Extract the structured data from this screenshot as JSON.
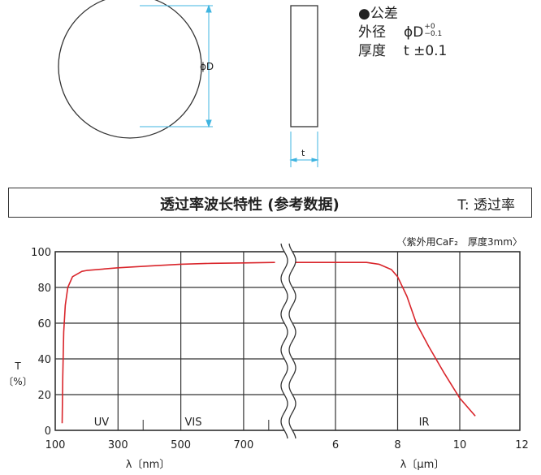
{
  "drawing": {
    "diameter_label": "ϕD",
    "thickness_label": "t",
    "dimension_color": "#3fb4e0"
  },
  "tolerance": {
    "heading": "●公差",
    "diameter_label": "外径",
    "diameter_value": "ϕD",
    "diameter_tol_plus": "+0",
    "diameter_tol_minus": "−0.1",
    "thickness_label": "厚度",
    "thickness_value": "t ±0.1"
  },
  "header": {
    "title": "透过率波长特性 (参考数据)",
    "legend": "T: 透过率"
  },
  "chart_data": {
    "type": "line",
    "note": "〈紫外用CaF₂　厚度3mm〉",
    "ylabel": "T\n〔%〕",
    "ylabel_top": "T",
    "ylabel_bottom": "〔%〕",
    "ylim": [
      0,
      100
    ],
    "yticks": [
      "0",
      "20",
      "40",
      "60",
      "80",
      "100"
    ],
    "x_left": {
      "label": "λ〔nm〕",
      "ticks": [
        "100",
        "300",
        "500",
        "700"
      ],
      "range": [
        100,
        800
      ]
    },
    "x_right": {
      "label": "λ〔μm〕",
      "ticks": [
        "6",
        "8",
        "10",
        "12"
      ],
      "range": [
        4.6,
        12
      ]
    },
    "regions": [
      "UV",
      "VIS",
      "IR"
    ],
    "grid": true,
    "line_color": "#d9252b",
    "series_nm": {
      "x": [
        122,
        124,
        127,
        132,
        140,
        155,
        185,
        200,
        300,
        400,
        500,
        600,
        700,
        800
      ],
      "y": [
        4,
        30,
        55,
        70,
        80,
        86,
        89,
        89.5,
        91,
        92,
        93,
        93.5,
        93.7,
        94
      ]
    },
    "series_um": {
      "x": [
        4.6,
        6,
        7,
        7.4,
        7.8,
        8,
        8.3,
        8.6,
        9,
        9.5,
        10,
        10.5
      ],
      "y": [
        94,
        94,
        94,
        93,
        90,
        86,
        75,
        60,
        47,
        32,
        18,
        8
      ]
    }
  }
}
